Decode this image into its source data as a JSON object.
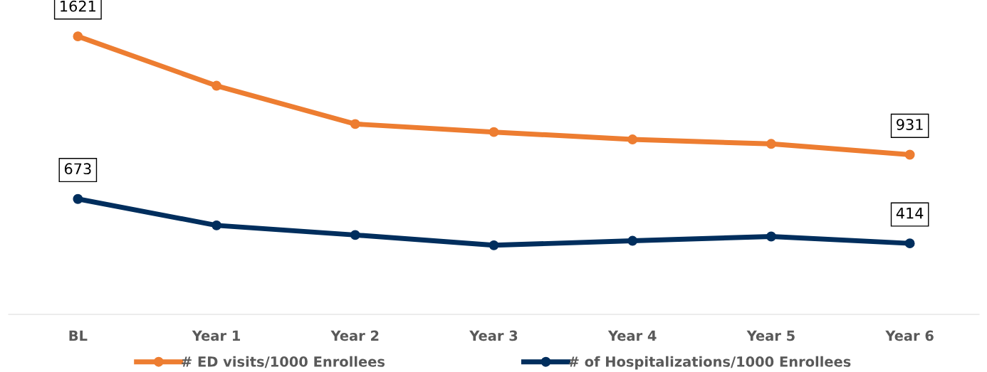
{
  "chart_data": {
    "type": "line",
    "categories": [
      "BL",
      "Year 1",
      "Year 2",
      "Year 3",
      "Year 4",
      "Year 5",
      "Year 6"
    ],
    "tick_labels": "x",
    "grid": false,
    "legend": "bottom",
    "marker": "circle",
    "line_style": "solid",
    "series": [
      {
        "name": "# ED visits/1000 Enrollees",
        "color": "#ed7d31",
        "values": [
          1621,
          1333,
          1110,
          1063,
          1020,
          994,
          931
        ],
        "value_labels": [
          "1621",
          null,
          null,
          null,
          null,
          null,
          "931"
        ]
      },
      {
        "name": "# of Hospitalizations/1000 Enrollees",
        "color": "#002e5d",
        "values": [
          673,
          519,
          463,
          403,
          429,
          454,
          414
        ],
        "value_labels": [
          "673",
          null,
          null,
          null,
          null,
          null,
          "414"
        ]
      }
    ]
  }
}
